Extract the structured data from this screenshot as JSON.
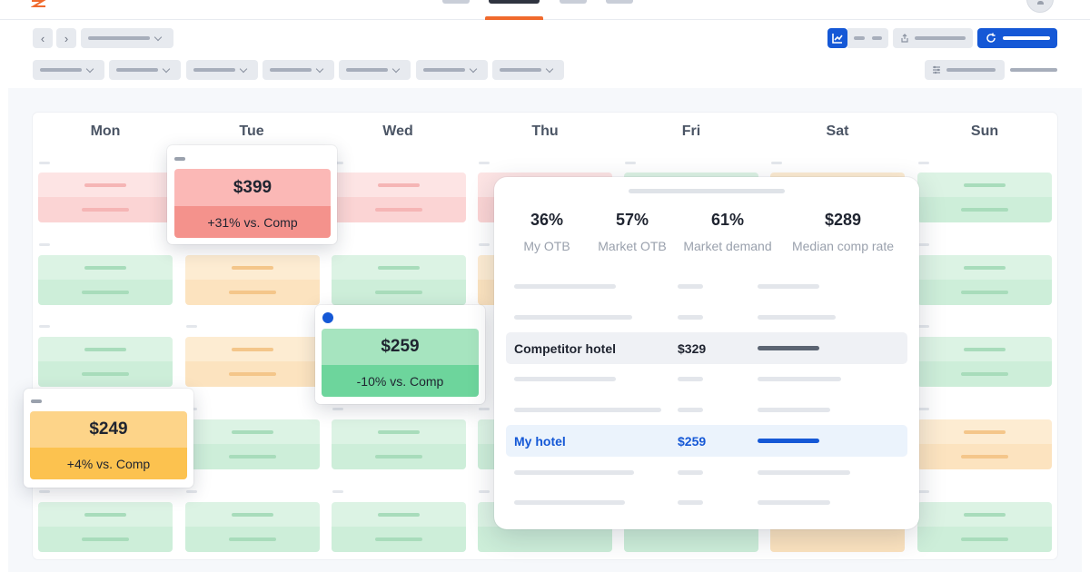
{
  "days": [
    "Mon",
    "Tue",
    "Wed",
    "Thu",
    "Fri",
    "Sat",
    "Sun"
  ],
  "popovers": [
    {
      "price": "$399",
      "delta": "+31% vs. Comp",
      "tone": "red"
    },
    {
      "price": "$259",
      "delta": "-10% vs. Comp",
      "tone": "green"
    },
    {
      "price": "$249",
      "delta": "+4% vs. Comp",
      "tone": "orange"
    }
  ],
  "detail": {
    "stats": [
      {
        "value": "36%",
        "label": "My OTB"
      },
      {
        "value": "57%",
        "label": "Market OTB"
      },
      {
        "value": "61%",
        "label": "Market demand"
      },
      {
        "value": "$289",
        "label": "Median comp rate"
      }
    ],
    "competitor": {
      "name": "Competitor hotel",
      "price": "$329"
    },
    "mine": {
      "name": "My hotel",
      "price": "$259"
    }
  },
  "colors": {
    "accent": "#1558d6",
    "nav_active": "#f06a2d",
    "red": "#f4928c",
    "green": "#6dd59c",
    "orange": "#fcc24f"
  }
}
